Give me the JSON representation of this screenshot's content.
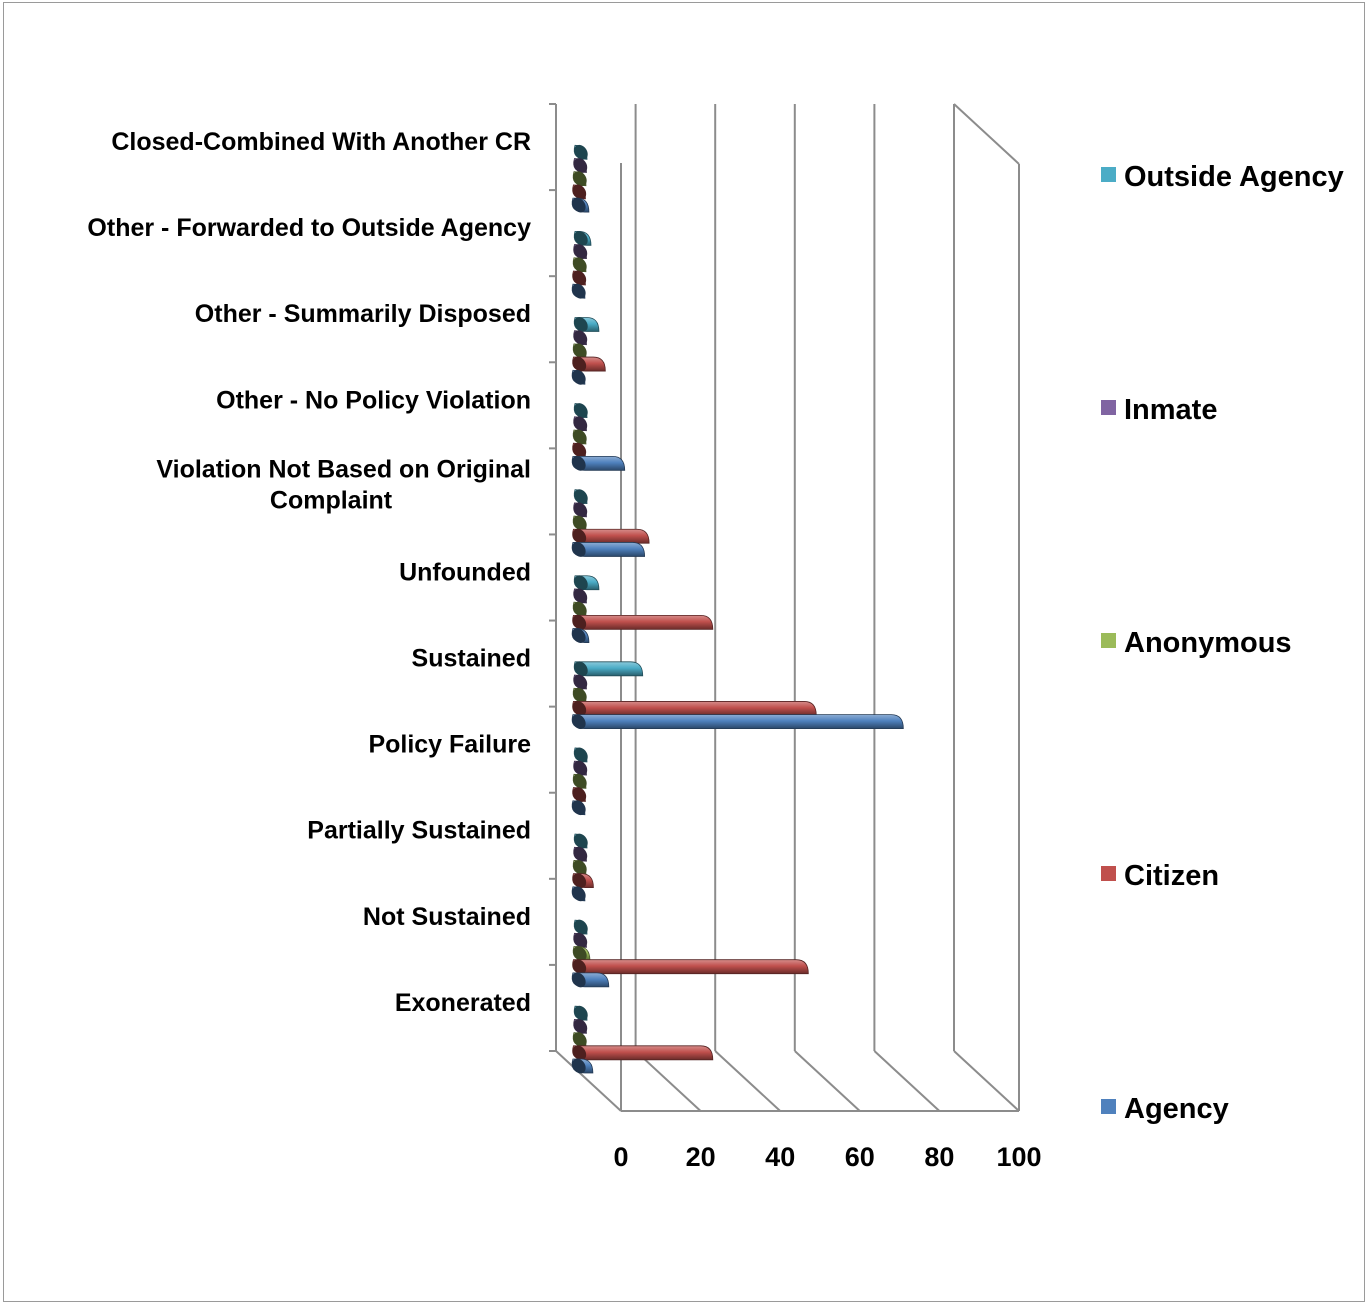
{
  "chart_data": {
    "type": "bar",
    "orientation": "horizontal",
    "style": "3d-cylinder",
    "categories": [
      "Exonerated",
      "Not Sustained",
      "Partially Sustained",
      "Policy Failure",
      "Sustained",
      "Unfounded",
      "Violation Not Based on Original Complaint",
      "Other - No Policy Violation",
      "Other - Summarily Disposed",
      "Other - Forwarded to Outside Agency",
      "Closed-Combined With Another CR"
    ],
    "series": [
      {
        "name": "Agency",
        "color": "#4f81bd",
        "values": [
          2,
          6,
          0,
          0,
          80,
          1,
          15,
          10,
          0,
          0,
          1
        ]
      },
      {
        "name": "Citizen",
        "color": "#c0504d",
        "values": [
          32,
          56,
          2,
          0,
          58,
          32,
          16,
          0,
          5,
          0,
          0
        ]
      },
      {
        "name": "Anonymous",
        "color": "#9bbb59",
        "values": [
          0,
          1,
          0,
          0,
          0,
          0,
          0,
          0,
          0,
          0,
          0
        ]
      },
      {
        "name": "Inmate",
        "color": "#8064a2",
        "values": [
          0,
          0,
          0,
          0,
          0,
          0,
          0,
          0,
          0,
          0,
          0
        ]
      },
      {
        "name": "Outside Agency",
        "color": "#4bacc6",
        "values": [
          0,
          0,
          0,
          0,
          14,
          3,
          0,
          0,
          3,
          1,
          0
        ]
      }
    ],
    "xlim": [
      0,
      100
    ],
    "xticks": [
      0,
      20,
      40,
      60,
      80,
      100
    ],
    "grid": true,
    "legend": "right"
  }
}
